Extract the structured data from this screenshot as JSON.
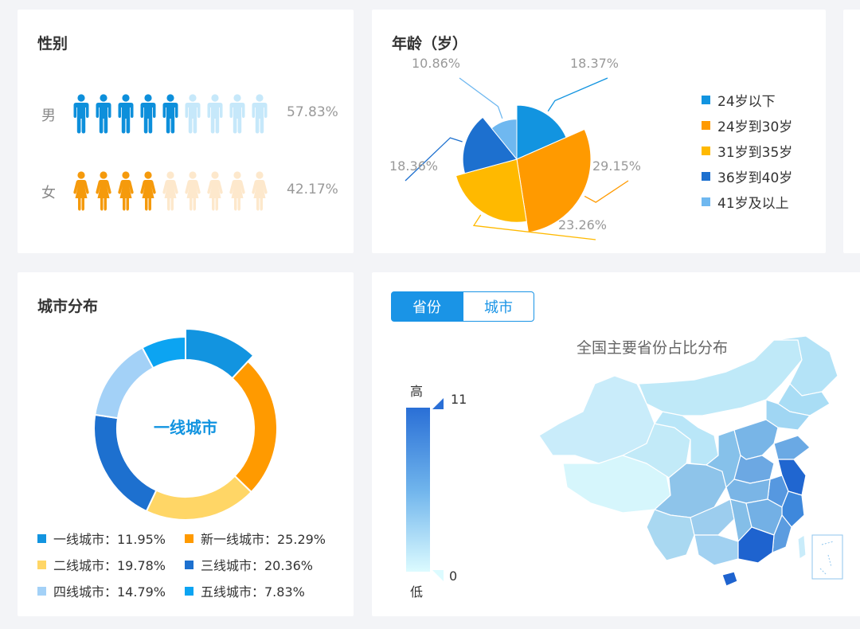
{
  "gender": {
    "title": "性别",
    "male": {
      "label": "男",
      "pct": "57.83%",
      "value": 57.83,
      "color": "#0d8fdb",
      "faded": "#c6e8fa"
    },
    "female": {
      "label": "女",
      "pct": "42.17%",
      "value": 42.17,
      "color": "#f59a0c",
      "faded": "#fde8cc"
    }
  },
  "age": {
    "title": "年龄（岁）",
    "legend": [
      {
        "label": "24岁以下",
        "color": "#1294e0"
      },
      {
        "label": "24岁到30岁",
        "color": "#ff9a00"
      },
      {
        "label": "31岁到35岁",
        "color": "#ffb900"
      },
      {
        "label": "36岁到40岁",
        "color": "#1d70cf"
      },
      {
        "label": "41岁及以上",
        "color": "#6fb8f0"
      }
    ],
    "labels": [
      "18.37%",
      "29.15%",
      "23.26%",
      "18.36%",
      "10.86%"
    ]
  },
  "city": {
    "title": "城市分布",
    "center_label": "一线城市",
    "legend": [
      {
        "label": "一线城市：11.95%",
        "color": "#1294e0"
      },
      {
        "label": "新一线城市：25.29%",
        "color": "#ff9a00"
      },
      {
        "label": "二线城市：19.78%",
        "color": "#ffd666"
      },
      {
        "label": "三线城市：20.36%",
        "color": "#1d70cf"
      },
      {
        "label": "四线城市：14.79%",
        "color": "#a3d1f7"
      },
      {
        "label": "五线城市：7.83%",
        "color": "#0ca4f2"
      }
    ]
  },
  "map": {
    "tabs": [
      "省份",
      "城市"
    ],
    "title": "全国主要省份占比分布",
    "visual_map": {
      "high_label": "高",
      "low_label": "低",
      "max": "11",
      "min": "0"
    }
  },
  "chart_data": [
    {
      "type": "bar",
      "title": "性别",
      "categories": [
        "男",
        "女"
      ],
      "values": [
        57.83,
        42.17
      ]
    },
    {
      "type": "pie",
      "title": "年龄（岁）",
      "categories": [
        "24岁以下",
        "24岁到30岁",
        "31岁到35岁",
        "36岁到40岁",
        "41岁及以上"
      ],
      "values": [
        18.37,
        29.15,
        23.26,
        18.36,
        10.86
      ],
      "legend": "right"
    },
    {
      "type": "pie",
      "title": "城市分布",
      "categories": [
        "一线城市",
        "新一线城市",
        "二线城市",
        "三线城市",
        "四线城市",
        "五线城市"
      ],
      "values": [
        11.95,
        25.29,
        19.78,
        20.36,
        14.79,
        7.83
      ],
      "legend": "bottom"
    }
  ]
}
